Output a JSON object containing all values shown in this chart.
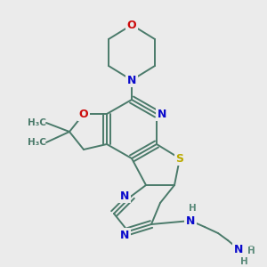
{
  "background_color": "#ebebeb",
  "bond_color": "#4a7a6a",
  "bond_width": 1.4,
  "atom_colors": {
    "N": "#0a0acc",
    "O": "#cc0a0a",
    "S": "#bbaa00",
    "H": "#5a8a7a",
    "C": "#4a7a6a"
  },
  "figsize": [
    3.0,
    3.0
  ],
  "dpi": 100
}
